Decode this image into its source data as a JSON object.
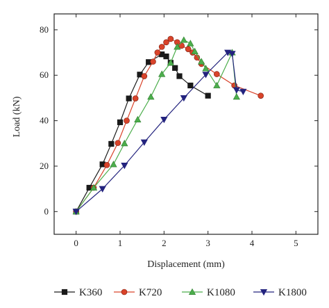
{
  "chart_data": {
    "type": "line",
    "title": "",
    "xlabel": "Displacement (mm)",
    "ylabel": "Load (kN)",
    "xlim": [
      -0.5,
      5.5
    ],
    "ylim": [
      -10,
      87
    ],
    "xticks": [
      0,
      1,
      2,
      3,
      4,
      5
    ],
    "yticks": [
      0,
      20,
      40,
      60,
      80
    ],
    "grid": false,
    "legend_position": "bottom",
    "series": [
      {
        "name": "K360",
        "color": "#1a1a1a",
        "marker": "square",
        "points": [
          [
            0,
            0
          ],
          [
            0.3,
            10.5
          ],
          [
            0.6,
            20.8
          ],
          [
            0.8,
            29.8
          ],
          [
            1.0,
            39.3
          ],
          [
            1.2,
            49.8
          ],
          [
            1.45,
            60.3
          ],
          [
            1.65,
            65.8
          ],
          [
            1.95,
            69.2
          ],
          [
            2.05,
            68.3
          ],
          [
            2.15,
            65.5
          ],
          [
            2.25,
            63.2
          ],
          [
            2.35,
            59.6
          ],
          [
            2.6,
            55.5
          ],
          [
            3.0,
            51.0
          ]
        ]
      },
      {
        "name": "K720",
        "color": "#d9432a",
        "marker": "circle",
        "points": [
          [
            0,
            0
          ],
          [
            0.4,
            10.5
          ],
          [
            0.7,
            20.5
          ],
          [
            0.95,
            30.2
          ],
          [
            1.15,
            40.0
          ],
          [
            1.35,
            49.8
          ],
          [
            1.55,
            59.6
          ],
          [
            1.75,
            66.0
          ],
          [
            1.85,
            70.0
          ],
          [
            1.95,
            72.5
          ],
          [
            2.05,
            74.5
          ],
          [
            2.15,
            76.0
          ],
          [
            2.3,
            74.5
          ],
          [
            2.4,
            73.0
          ],
          [
            2.55,
            71.5
          ],
          [
            2.65,
            70.0
          ],
          [
            2.75,
            67.8
          ],
          [
            2.85,
            65.0
          ],
          [
            3.2,
            60.5
          ],
          [
            3.6,
            55.5
          ],
          [
            4.2,
            51.0
          ]
        ]
      },
      {
        "name": "K1080",
        "color": "#4cae4c",
        "marker": "triangle-up",
        "points": [
          [
            0,
            0
          ],
          [
            0.4,
            10.5
          ],
          [
            0.85,
            20.8
          ],
          [
            1.1,
            30.0
          ],
          [
            1.4,
            40.5
          ],
          [
            1.7,
            50.5
          ],
          [
            1.95,
            60.5
          ],
          [
            2.15,
            65.5
          ],
          [
            2.3,
            72.5
          ],
          [
            2.45,
            75.5
          ],
          [
            2.6,
            74.0
          ],
          [
            2.7,
            70.5
          ],
          [
            2.85,
            66.0
          ],
          [
            2.95,
            63.0
          ],
          [
            3.2,
            55.5
          ],
          [
            3.55,
            70.0
          ],
          [
            3.65,
            50.5
          ]
        ]
      },
      {
        "name": "K1800",
        "color": "#23237e",
        "marker": "triangle-down",
        "points": [
          [
            0,
            0
          ],
          [
            0.6,
            10.0
          ],
          [
            1.1,
            20.3
          ],
          [
            1.55,
            30.5
          ],
          [
            2.0,
            40.5
          ],
          [
            2.45,
            50.0
          ],
          [
            2.95,
            60.3
          ],
          [
            3.45,
            70.0
          ],
          [
            3.55,
            69.5
          ],
          [
            3.65,
            53.5
          ],
          [
            3.8,
            52.8
          ]
        ]
      }
    ]
  }
}
